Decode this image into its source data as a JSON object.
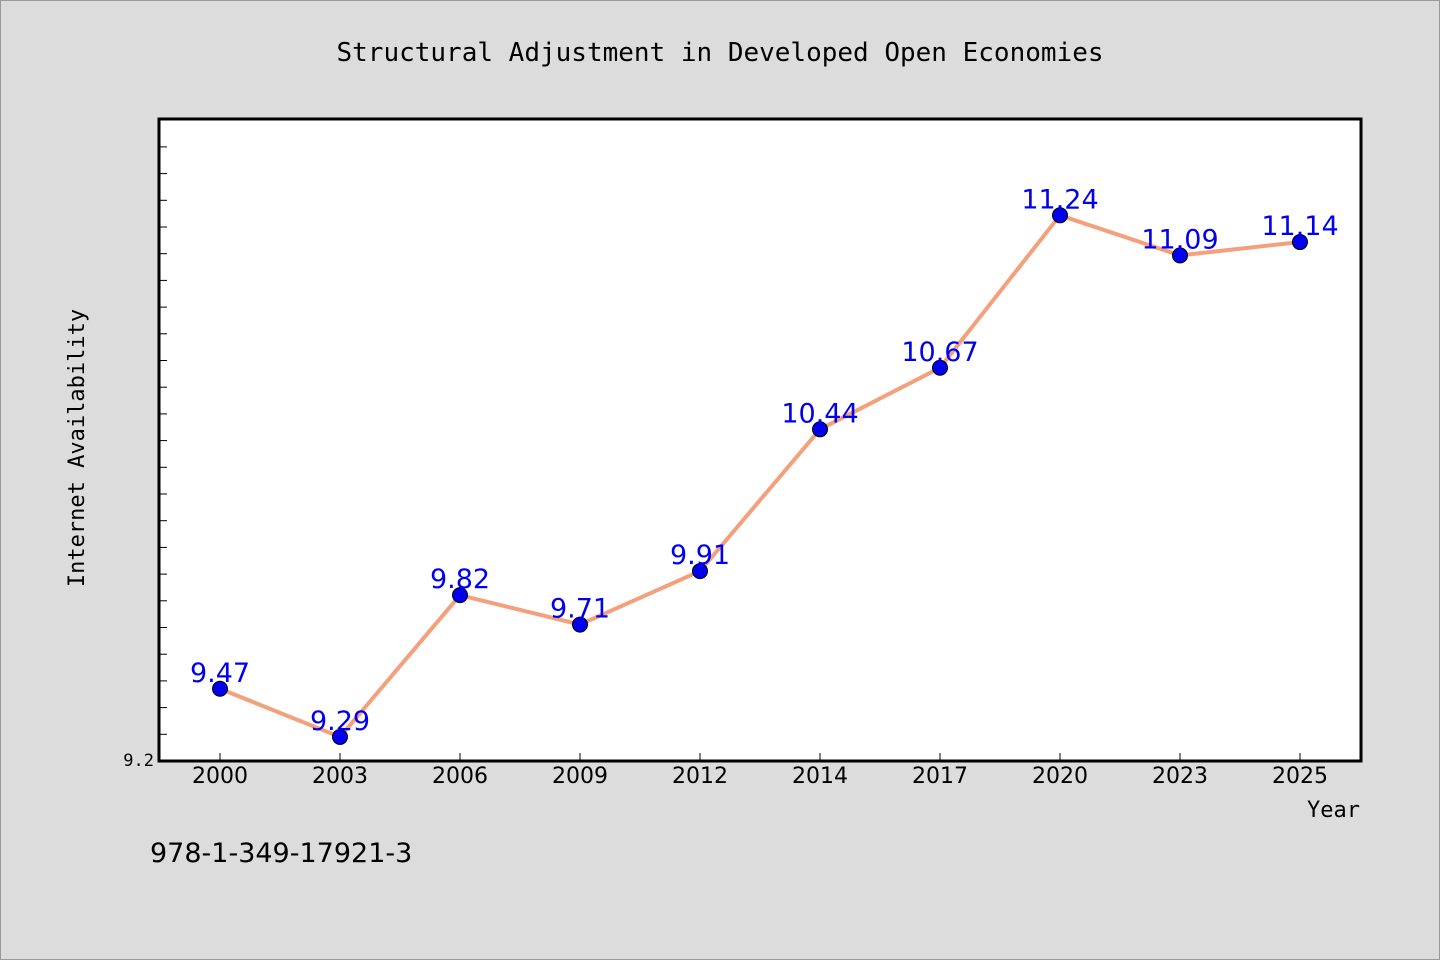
{
  "chart_data": {
    "type": "line",
    "title": "Structural Adjustment in Developed Open Economies",
    "xlabel": "Year",
    "ylabel": "Internet Availability",
    "categories": [
      "2000",
      "2003",
      "2006",
      "2009",
      "2012",
      "2014",
      "2017",
      "2020",
      "2023",
      "2025"
    ],
    "series": [
      {
        "values": [
          9.47,
          9.29,
          9.82,
          9.71,
          9.91,
          10.44,
          10.67,
          11.24,
          11.09,
          11.14
        ],
        "labels": [
          "9.47",
          "9.29",
          "9.82",
          "9.71",
          "9.91",
          "10.44",
          "10.67",
          "11.24",
          "11.09",
          "11.14"
        ],
        "line_color": "#f4a07c",
        "marker_color": "#0000ee",
        "label_color": "#0000ee"
      }
    ],
    "ylim": [
      9.2,
      11.6
    ],
    "ytick_label": "9.2",
    "grid": false,
    "legend": "none"
  },
  "footer": {
    "isbn": "978-1-349-17921-3"
  }
}
